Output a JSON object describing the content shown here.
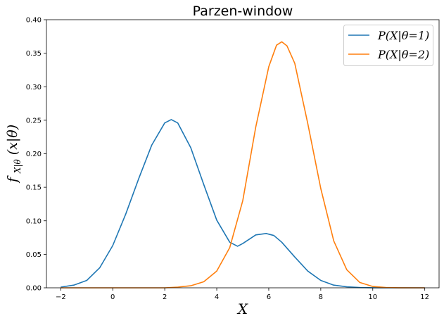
{
  "chart_data": {
    "type": "line",
    "title": "Parzen-window",
    "xlabel": "X",
    "ylabel": "f_{X|θ}(x|θ)",
    "xlim": [
      -2.55,
      12.55
    ],
    "ylim": [
      0,
      0.4
    ],
    "x_ticks": [
      -2,
      0,
      2,
      4,
      6,
      8,
      10,
      12
    ],
    "y_ticks": [
      0.0,
      0.05,
      0.1,
      0.15,
      0.2,
      0.25,
      0.3,
      0.35,
      0.4
    ],
    "x_tick_labels": [
      "−2",
      "0",
      "2",
      "4",
      "6",
      "8",
      "10",
      "12"
    ],
    "y_tick_labels": [
      "0.00",
      "0.05",
      "0.10",
      "0.15",
      "0.20",
      "0.25",
      "0.30",
      "0.35",
      "0.40"
    ],
    "grid": false,
    "legend_position": "top-right",
    "series": [
      {
        "name": "P(X|θ=1)",
        "color": "#1f77b4",
        "x": [
          -2,
          -1.5,
          -1,
          -0.5,
          0,
          0.5,
          1,
          1.5,
          2,
          2.25,
          2.5,
          3,
          3.5,
          4,
          4.5,
          4.8,
          5,
          5.5,
          5.9,
          6.2,
          6.5,
          7,
          7.5,
          8,
          8.5,
          9,
          9.5,
          10,
          11,
          12
        ],
        "y": [
          0.001,
          0.004,
          0.011,
          0.03,
          0.063,
          0.11,
          0.163,
          0.213,
          0.246,
          0.251,
          0.246,
          0.209,
          0.154,
          0.101,
          0.068,
          0.062,
          0.066,
          0.079,
          0.081,
          0.078,
          0.068,
          0.046,
          0.025,
          0.011,
          0.004,
          0.0015,
          0.0004,
          0.0001,
          0.0,
          0.0
        ]
      },
      {
        "name": "P(X|θ=2)",
        "color": "#ff7f0e",
        "x": [
          -2,
          2,
          2.5,
          3,
          3.5,
          4,
          4.5,
          5,
          5.5,
          6,
          6.3,
          6.5,
          6.7,
          7,
          7.5,
          8,
          8.5,
          9,
          9.5,
          10,
          10.5,
          11,
          12
        ],
        "y": [
          0.0,
          0.0,
          0.001,
          0.003,
          0.009,
          0.025,
          0.06,
          0.13,
          0.24,
          0.33,
          0.362,
          0.367,
          0.361,
          0.335,
          0.245,
          0.148,
          0.07,
          0.027,
          0.008,
          0.002,
          0.0005,
          0.0001,
          0.0
        ]
      }
    ]
  }
}
